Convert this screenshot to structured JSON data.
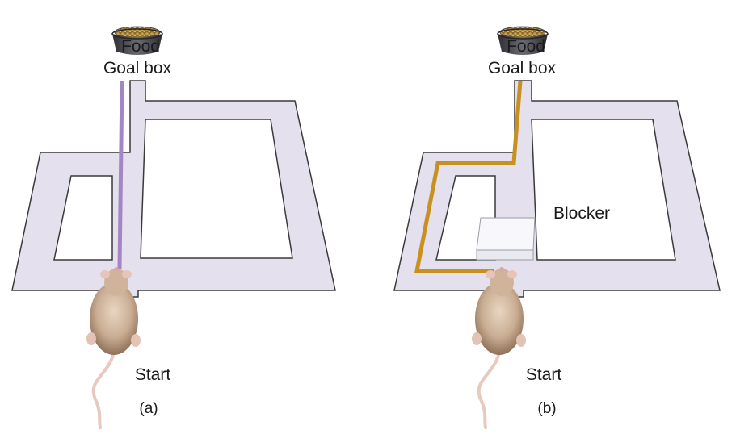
{
  "panels": [
    {
      "id": "a",
      "food_label": "Food",
      "goal_label": "Goal box",
      "start_label": "Start",
      "caption": "(a)"
    },
    {
      "id": "b",
      "food_label": "Food",
      "goal_label": "Goal box",
      "start_label": "Start",
      "caption": "(b)",
      "blocker_label": "Blocker"
    }
  ],
  "colors": {
    "maze_fill": "#e4e0ee",
    "maze_outline": "#3a3a3a",
    "path_a": "#a586c2",
    "path_b": "#c8901e",
    "bowl": "#4a4a52",
    "kibble": "#b08a3a",
    "rat_fur": "#c9ad93",
    "tail": "#e8c9bf"
  }
}
